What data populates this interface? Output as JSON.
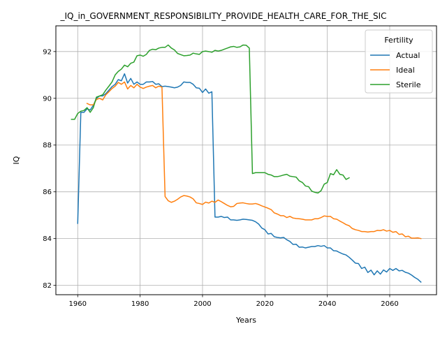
{
  "chart_data": {
    "type": "line",
    "title": "_IQ_in_GOVERNMENT_RESPONSIBILITY_PROVIDE_HEALTH_CARE_FOR_THE_SIC",
    "xlabel": "Years",
    "ylabel": "IQ",
    "xlim": [
      1953,
      2075
    ],
    "ylim": [
      81.6,
      93.1
    ],
    "xticks": [
      1960,
      1980,
      2000,
      2020,
      2040,
      2060
    ],
    "yticks": [
      82,
      84,
      86,
      88,
      90,
      92
    ],
    "grid": true,
    "legend": {
      "title": "Fertility",
      "location": "upper right"
    },
    "series": [
      {
        "name": "Actual",
        "color": "#1f77b4",
        "points": [
          [
            1960,
            84.65
          ],
          [
            1961,
            89.4
          ],
          [
            1962,
            89.4
          ],
          [
            1963,
            89.55
          ],
          [
            1964,
            89.5
          ],
          [
            1965,
            89.7
          ],
          [
            1966,
            90.0
          ],
          [
            1967,
            90.1
          ],
          [
            1968,
            90.1
          ],
          [
            1969,
            90.2
          ],
          [
            1970,
            90.35
          ],
          [
            1971,
            90.5
          ],
          [
            1972,
            90.6
          ],
          [
            1973,
            90.8
          ],
          [
            1974,
            90.75
          ],
          [
            1975,
            91.05
          ],
          [
            1976,
            90.65
          ],
          [
            1977,
            90.85
          ],
          [
            1978,
            90.6
          ],
          [
            1979,
            90.7
          ],
          [
            1980,
            90.6
          ],
          [
            1981,
            90.6
          ],
          [
            1982,
            90.7
          ],
          [
            1983,
            90.7
          ],
          [
            1984,
            90.72
          ],
          [
            1985,
            90.6
          ],
          [
            1986,
            90.62
          ],
          [
            1987,
            90.5
          ],
          [
            1988,
            90.52
          ],
          [
            1989,
            90.5
          ],
          [
            1990,
            90.48
          ],
          [
            1991,
            90.45
          ],
          [
            1992,
            90.48
          ],
          [
            1993,
            90.55
          ],
          [
            1994,
            90.7
          ],
          [
            1995,
            90.68
          ],
          [
            1996,
            90.68
          ],
          [
            1997,
            90.6
          ],
          [
            1998,
            90.45
          ],
          [
            1999,
            90.43
          ],
          [
            2000,
            90.25
          ],
          [
            2001,
            90.4
          ],
          [
            2002,
            90.22
          ],
          [
            2003,
            90.28
          ],
          [
            2004,
            84.92
          ],
          [
            2005,
            84.92
          ],
          [
            2006,
            84.95
          ],
          [
            2007,
            84.9
          ],
          [
            2008,
            84.92
          ],
          [
            2009,
            84.8
          ],
          [
            2010,
            84.8
          ],
          [
            2011,
            84.78
          ],
          [
            2012,
            84.8
          ],
          [
            2013,
            84.83
          ],
          [
            2014,
            84.82
          ],
          [
            2015,
            84.8
          ],
          [
            2016,
            84.78
          ],
          [
            2017,
            84.72
          ],
          [
            2018,
            84.62
          ],
          [
            2019,
            84.45
          ],
          [
            2020,
            84.38
          ],
          [
            2021,
            84.2
          ],
          [
            2022,
            84.22
          ],
          [
            2023,
            84.08
          ],
          [
            2024,
            84.05
          ],
          [
            2025,
            84.03
          ],
          [
            2026,
            84.05
          ],
          [
            2027,
            83.95
          ],
          [
            2028,
            83.88
          ],
          [
            2029,
            83.75
          ],
          [
            2030,
            83.76
          ],
          [
            2031,
            83.63
          ],
          [
            2032,
            83.64
          ],
          [
            2033,
            83.6
          ],
          [
            2034,
            83.63
          ],
          [
            2035,
            83.66
          ],
          [
            2036,
            83.66
          ],
          [
            2037,
            83.7
          ],
          [
            2038,
            83.67
          ],
          [
            2039,
            83.7
          ],
          [
            2040,
            83.6
          ],
          [
            2041,
            83.6
          ],
          [
            2042,
            83.48
          ],
          [
            2043,
            83.47
          ],
          [
            2044,
            83.4
          ],
          [
            2045,
            83.34
          ],
          [
            2046,
            83.3
          ],
          [
            2047,
            83.2
          ],
          [
            2048,
            83.08
          ],
          [
            2049,
            82.95
          ],
          [
            2050,
            82.93
          ],
          [
            2051,
            82.72
          ],
          [
            2052,
            82.78
          ],
          [
            2053,
            82.55
          ],
          [
            2054,
            82.65
          ],
          [
            2055,
            82.45
          ],
          [
            2056,
            82.62
          ],
          [
            2057,
            82.48
          ],
          [
            2058,
            82.66
          ],
          [
            2059,
            82.57
          ],
          [
            2060,
            82.72
          ],
          [
            2061,
            82.64
          ],
          [
            2062,
            82.72
          ],
          [
            2063,
            82.62
          ],
          [
            2064,
            82.64
          ],
          [
            2065,
            82.56
          ],
          [
            2066,
            82.52
          ],
          [
            2067,
            82.44
          ],
          [
            2068,
            82.34
          ],
          [
            2069,
            82.26
          ],
          [
            2070,
            82.14
          ]
        ]
      },
      {
        "name": "Ideal",
        "color": "#ff7f0e",
        "points": [
          [
            1963,
            89.78
          ],
          [
            1964,
            89.72
          ],
          [
            1965,
            89.72
          ],
          [
            1966,
            89.95
          ],
          [
            1967,
            90.0
          ],
          [
            1968,
            89.93
          ],
          [
            1969,
            90.15
          ],
          [
            1970,
            90.28
          ],
          [
            1971,
            90.42
          ],
          [
            1972,
            90.52
          ],
          [
            1973,
            90.68
          ],
          [
            1974,
            90.6
          ],
          [
            1975,
            90.7
          ],
          [
            1976,
            90.4
          ],
          [
            1977,
            90.55
          ],
          [
            1978,
            90.45
          ],
          [
            1979,
            90.6
          ],
          [
            1980,
            90.48
          ],
          [
            1981,
            90.42
          ],
          [
            1982,
            90.48
          ],
          [
            1983,
            90.52
          ],
          [
            1984,
            90.55
          ],
          [
            1985,
            90.45
          ],
          [
            1986,
            90.52
          ],
          [
            1987,
            90.48
          ],
          [
            1988,
            85.8
          ],
          [
            1989,
            85.62
          ],
          [
            1990,
            85.55
          ],
          [
            1991,
            85.6
          ],
          [
            1992,
            85.68
          ],
          [
            1993,
            85.78
          ],
          [
            1994,
            85.84
          ],
          [
            1995,
            85.82
          ],
          [
            1996,
            85.78
          ],
          [
            1997,
            85.7
          ],
          [
            1998,
            85.53
          ],
          [
            1999,
            85.5
          ],
          [
            2000,
            85.46
          ],
          [
            2001,
            85.56
          ],
          [
            2002,
            85.52
          ],
          [
            2003,
            85.6
          ],
          [
            2004,
            85.55
          ],
          [
            2005,
            85.65
          ],
          [
            2006,
            85.58
          ],
          [
            2007,
            85.5
          ],
          [
            2008,
            85.42
          ],
          [
            2009,
            85.36
          ],
          [
            2010,
            85.38
          ],
          [
            2011,
            85.5
          ],
          [
            2012,
            85.52
          ],
          [
            2013,
            85.53
          ],
          [
            2014,
            85.5
          ],
          [
            2015,
            85.48
          ],
          [
            2016,
            85.48
          ],
          [
            2017,
            85.5
          ],
          [
            2018,
            85.46
          ],
          [
            2019,
            85.4
          ],
          [
            2020,
            85.35
          ],
          [
            2021,
            85.3
          ],
          [
            2022,
            85.24
          ],
          [
            2023,
            85.1
          ],
          [
            2024,
            85.05
          ],
          [
            2025,
            84.98
          ],
          [
            2026,
            84.98
          ],
          [
            2027,
            84.9
          ],
          [
            2028,
            84.95
          ],
          [
            2029,
            84.88
          ],
          [
            2030,
            84.86
          ],
          [
            2031,
            84.85
          ],
          [
            2032,
            84.83
          ],
          [
            2033,
            84.8
          ],
          [
            2034,
            84.8
          ],
          [
            2035,
            84.8
          ],
          [
            2036,
            84.85
          ],
          [
            2037,
            84.85
          ],
          [
            2038,
            84.9
          ],
          [
            2039,
            84.97
          ],
          [
            2040,
            84.95
          ],
          [
            2041,
            84.95
          ],
          [
            2042,
            84.85
          ],
          [
            2043,
            84.83
          ],
          [
            2044,
            84.75
          ],
          [
            2045,
            84.68
          ],
          [
            2046,
            84.6
          ],
          [
            2047,
            84.55
          ],
          [
            2048,
            84.43
          ],
          [
            2049,
            84.38
          ],
          [
            2050,
            84.35
          ],
          [
            2051,
            84.3
          ],
          [
            2052,
            84.3
          ],
          [
            2053,
            84.28
          ],
          [
            2054,
            84.3
          ],
          [
            2055,
            84.3
          ],
          [
            2056,
            84.35
          ],
          [
            2057,
            84.34
          ],
          [
            2058,
            84.38
          ],
          [
            2059,
            84.32
          ],
          [
            2060,
            84.35
          ],
          [
            2061,
            84.27
          ],
          [
            2062,
            84.3
          ],
          [
            2063,
            84.18
          ],
          [
            2064,
            84.2
          ],
          [
            2065,
            84.08
          ],
          [
            2066,
            84.1
          ],
          [
            2067,
            84.02
          ],
          [
            2068,
            84.02
          ],
          [
            2069,
            84.03
          ],
          [
            2070,
            84.0
          ]
        ]
      },
      {
        "name": "Sterile",
        "color": "#2ca02c",
        "points": [
          [
            1958,
            89.1
          ],
          [
            1959,
            89.1
          ],
          [
            1960,
            89.35
          ],
          [
            1961,
            89.45
          ],
          [
            1962,
            89.48
          ],
          [
            1963,
            89.6
          ],
          [
            1964,
            89.4
          ],
          [
            1965,
            89.6
          ],
          [
            1966,
            90.05
          ],
          [
            1967,
            90.1
          ],
          [
            1968,
            90.15
          ],
          [
            1969,
            90.35
          ],
          [
            1970,
            90.52
          ],
          [
            1971,
            90.7
          ],
          [
            1972,
            91.0
          ],
          [
            1973,
            91.15
          ],
          [
            1974,
            91.25
          ],
          [
            1975,
            91.42
          ],
          [
            1976,
            91.35
          ],
          [
            1977,
            91.5
          ],
          [
            1978,
            91.55
          ],
          [
            1979,
            91.82
          ],
          [
            1980,
            91.85
          ],
          [
            1981,
            91.8
          ],
          [
            1982,
            91.88
          ],
          [
            1983,
            92.05
          ],
          [
            1984,
            92.1
          ],
          [
            1985,
            92.08
          ],
          [
            1986,
            92.15
          ],
          [
            1987,
            92.18
          ],
          [
            1988,
            92.18
          ],
          [
            1989,
            92.28
          ],
          [
            1990,
            92.15
          ],
          [
            1991,
            92.07
          ],
          [
            1992,
            91.92
          ],
          [
            1993,
            91.87
          ],
          [
            1994,
            91.82
          ],
          [
            1995,
            91.83
          ],
          [
            1996,
            91.85
          ],
          [
            1997,
            91.93
          ],
          [
            1998,
            91.9
          ],
          [
            1999,
            91.88
          ],
          [
            2000,
            92.0
          ],
          [
            2001,
            92.02
          ],
          [
            2002,
            92.0
          ],
          [
            2003,
            91.97
          ],
          [
            2004,
            92.05
          ],
          [
            2005,
            92.02
          ],
          [
            2006,
            92.05
          ],
          [
            2007,
            92.1
          ],
          [
            2008,
            92.15
          ],
          [
            2009,
            92.2
          ],
          [
            2010,
            92.22
          ],
          [
            2011,
            92.18
          ],
          [
            2012,
            92.2
          ],
          [
            2013,
            92.28
          ],
          [
            2014,
            92.27
          ],
          [
            2015,
            92.15
          ],
          [
            2016,
            86.78
          ],
          [
            2017,
            86.82
          ],
          [
            2018,
            86.82
          ],
          [
            2019,
            86.82
          ],
          [
            2020,
            86.82
          ],
          [
            2021,
            86.75
          ],
          [
            2022,
            86.72
          ],
          [
            2023,
            86.65
          ],
          [
            2024,
            86.65
          ],
          [
            2025,
            86.68
          ],
          [
            2026,
            86.72
          ],
          [
            2027,
            86.75
          ],
          [
            2028,
            86.67
          ],
          [
            2029,
            86.65
          ],
          [
            2030,
            86.63
          ],
          [
            2031,
            86.47
          ],
          [
            2032,
            86.4
          ],
          [
            2033,
            86.25
          ],
          [
            2034,
            86.22
          ],
          [
            2035,
            86.03
          ],
          [
            2036,
            85.98
          ],
          [
            2037,
            85.95
          ],
          [
            2038,
            86.05
          ],
          [
            2039,
            86.33
          ],
          [
            2040,
            86.4
          ],
          [
            2041,
            86.78
          ],
          [
            2042,
            86.73
          ],
          [
            2043,
            86.95
          ],
          [
            2044,
            86.75
          ],
          [
            2045,
            86.72
          ],
          [
            2046,
            86.53
          ],
          [
            2047,
            86.6
          ]
        ]
      }
    ]
  }
}
